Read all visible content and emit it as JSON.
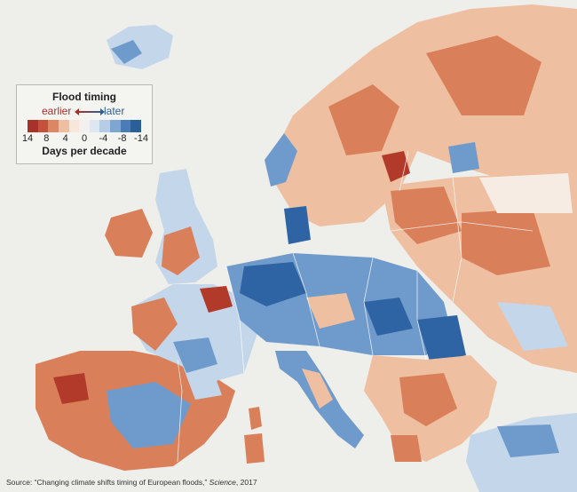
{
  "map": {
    "colors": {
      "sea": "#eeeeeb",
      "border": "#ffffff",
      "earliest": "#b23a2b",
      "earlier": "#d9805a",
      "slightly_earlier": "#efbfa1",
      "neutral": "#f6ece4",
      "slightly_later": "#c4d7ea",
      "later": "#6f9bcc",
      "latest": "#2e64a4"
    }
  },
  "legend": {
    "title": "Flood timing",
    "earlier": "earlier",
    "later": "later",
    "ticks": [
      "14",
      "8",
      "4",
      "0",
      "-4",
      "-8",
      "-14"
    ],
    "caption": "Days per decade",
    "bar_colors": [
      "#a8322a",
      "#c5513d",
      "#dc8663",
      "#efbd9f",
      "#f7e6dc",
      "#f3f1ef",
      "#dde7f1",
      "#b6cde5",
      "#7ea6d1",
      "#4a7db8",
      "#2b5f98"
    ]
  },
  "source": {
    "prefix": "Source: “Changing climate shifts timing of European floods,” ",
    "journal": "Science",
    "suffix": ", 2017"
  }
}
